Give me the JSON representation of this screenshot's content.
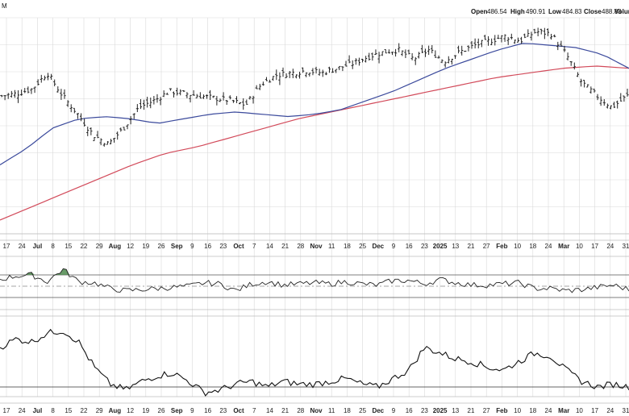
{
  "header": {
    "corner_text": "M",
    "open_label": "Open",
    "open_value": "486.54",
    "high_label": "High",
    "high_value": "490.91",
    "low_label": "Low",
    "low_value": "484.83",
    "close_label": "Close",
    "close_value": "488.83",
    "volume_label": "Volum"
  },
  "x_ticks": [
    {
      "label": "17",
      "bold": false
    },
    {
      "label": "24",
      "bold": false
    },
    {
      "label": "Jul",
      "bold": true
    },
    {
      "label": "8",
      "bold": false
    },
    {
      "label": "15",
      "bold": false
    },
    {
      "label": "22",
      "bold": false
    },
    {
      "label": "29",
      "bold": false
    },
    {
      "label": "Aug",
      "bold": true
    },
    {
      "label": "12",
      "bold": false
    },
    {
      "label": "19",
      "bold": false
    },
    {
      "label": "26",
      "bold": false
    },
    {
      "label": "Sep",
      "bold": true
    },
    {
      "label": "9",
      "bold": false
    },
    {
      "label": "16",
      "bold": false
    },
    {
      "label": "23",
      "bold": false
    },
    {
      "label": "Oct",
      "bold": true
    },
    {
      "label": "7",
      "bold": false
    },
    {
      "label": "14",
      "bold": false
    },
    {
      "label": "21",
      "bold": false
    },
    {
      "label": "28",
      "bold": false
    },
    {
      "label": "Nov",
      "bold": true
    },
    {
      "label": "11",
      "bold": false
    },
    {
      "label": "18",
      "bold": false
    },
    {
      "label": "25",
      "bold": false
    },
    {
      "label": "Dec",
      "bold": true
    },
    {
      "label": "9",
      "bold": false
    },
    {
      "label": "16",
      "bold": false
    },
    {
      "label": "23",
      "bold": false
    },
    {
      "label": "2025",
      "bold": true
    },
    {
      "label": "13",
      "bold": false
    },
    {
      "label": "21",
      "bold": false
    },
    {
      "label": "27",
      "bold": false
    },
    {
      "label": "Feb",
      "bold": true
    },
    {
      "label": "10",
      "bold": false
    },
    {
      "label": "18",
      "bold": false
    },
    {
      "label": "24",
      "bold": false
    },
    {
      "label": "Mar",
      "bold": true
    },
    {
      "label": "10",
      "bold": false
    },
    {
      "label": "17",
      "bold": false
    },
    {
      "label": "24",
      "bold": false
    },
    {
      "label": "31",
      "bold": false
    }
  ],
  "colors": {
    "background": "#ffffff",
    "grid": "#d9d9d9",
    "bars": "#222222",
    "ma_fast": "#3b4a9c",
    "ma_slow": "#d24a5a",
    "rsi_line": "#222222",
    "rsi_fill": "#4f8a4f",
    "osc_line": "#111111"
  },
  "chart_data": {
    "type": "ohlc",
    "price_series": [
      {
        "kind": "ohlc_bars",
        "approx_close_path": [
          478,
          479,
          481,
          488,
          478,
          470,
          461,
          457,
          464,
          473,
          476,
          480,
          479,
          478,
          477,
          476,
          474,
          483,
          487,
          488,
          489,
          488,
          490,
          492,
          495,
          497,
          498,
          494,
          498,
          493,
          497,
          500,
          502,
          504,
          502,
          506,
          505,
          496,
          484,
          478,
          473,
          478
        ]
      },
      {
        "kind": "moving_average_fast",
        "approx_path": [
          448,
          455,
          464,
          468,
          469,
          468,
          466,
          468,
          470,
          471,
          470,
          469,
          470,
          472,
          476,
          480,
          485,
          490,
          494,
          498,
          501,
          500,
          499,
          496,
          490
        ]
      },
      {
        "kind": "moving_average_slow",
        "approx_path": [
          424,
          430,
          436,
          442,
          448,
          453,
          456,
          460,
          464,
          468,
          471,
          474,
          477,
          480,
          483,
          486,
          488,
          490,
          491,
          490
        ]
      }
    ],
    "panels": [
      {
        "name": "upper_oscillator",
        "reference_lines": 3,
        "approx_values": [
          0.3,
          0.45,
          0.5,
          0.2,
          0.75,
          0.2,
          0.15,
          -0.1,
          -0.2,
          -0.15,
          -0.1,
          -0.05,
          0,
          0.15,
          0.1,
          -0.2,
          0.1,
          0.2,
          0.05,
          0.1,
          0.15,
          0.1,
          0.2,
          0.1,
          0.05,
          0.25,
          0.25,
          0.1,
          0.3,
          0.15,
          0.05,
          0.05,
          0.1,
          0.15,
          -0.1,
          -0.1,
          -0.2,
          -0.15,
          -0.05,
          0.05,
          -0.15
        ]
      },
      {
        "name": "lower_oscillator",
        "reference_lines": 1,
        "approx_values": [
          0.7,
          0.85,
          0.8,
          0.95,
          1,
          0.8,
          0.35,
          0.05,
          -0.05,
          0.1,
          0.2,
          0.25,
          0.1,
          -0.1,
          -0.05,
          0.05,
          0.1,
          0.0,
          0.1,
          0.05,
          0.05,
          0.1,
          0.15,
          0.05,
          0.0,
          0.15,
          0.3,
          0.7,
          0.6,
          0.5,
          0.45,
          0.35,
          0.3,
          0.45,
          0.6,
          0.55,
          0.3,
          0.1,
          0.0,
          0.05,
          0.0
        ]
      }
    ]
  }
}
